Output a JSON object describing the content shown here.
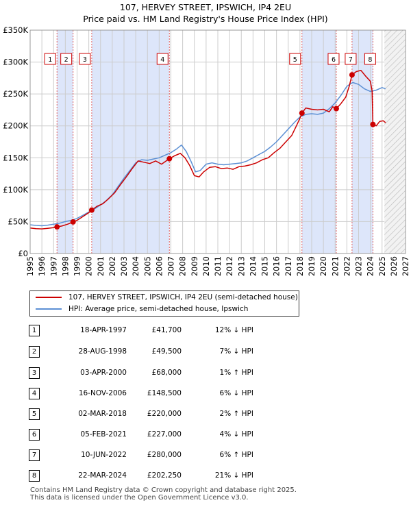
{
  "title": {
    "line1": "107, HERVEY STREET, IPSWICH, IP4 2EU",
    "line2": "Price paid vs. HM Land Registry's House Price Index (HPI)"
  },
  "legend": {
    "property": "107, HERVEY STREET, IPSWICH, IP4 2EU (semi-detached house)",
    "hpi": "HPI: Average price, semi-detached house, Ipswich"
  },
  "colors": {
    "property": "#cc0000",
    "hpi": "#5b8fd4",
    "band": "#dde6fa",
    "grid": "#cccccc",
    "marker_line": "#e06060"
  },
  "sales": [
    {
      "num": "1",
      "date": "18-APR-1997",
      "price": "£41,700",
      "hpi": "12% ↓ HPI"
    },
    {
      "num": "2",
      "date": "28-AUG-1998",
      "price": "£49,500",
      "hpi": "7% ↓ HPI"
    },
    {
      "num": "3",
      "date": "03-APR-2000",
      "price": "£68,000",
      "hpi": "1% ↑ HPI"
    },
    {
      "num": "4",
      "date": "16-NOV-2006",
      "price": "£148,500",
      "hpi": "6% ↓ HPI"
    },
    {
      "num": "5",
      "date": "02-MAR-2018",
      "price": "£220,000",
      "hpi": "2% ↑ HPI"
    },
    {
      "num": "6",
      "date": "05-FEB-2021",
      "price": "£227,000",
      "hpi": "4% ↓ HPI"
    },
    {
      "num": "7",
      "date": "10-JUN-2022",
      "price": "£280,000",
      "hpi": "6% ↑ HPI"
    },
    {
      "num": "8",
      "date": "22-MAR-2024",
      "price": "£202,250",
      "hpi": "21% ↓ HPI"
    }
  ],
  "footer": {
    "line1": "Contains HM Land Registry data © Crown copyright and database right 2025.",
    "line2": "This data is licensed under the Open Government Licence v3.0."
  },
  "chart_data": {
    "type": "line",
    "title": "Price paid vs. HM Land Registry's House Price Index (HPI)",
    "xlabel": "",
    "ylabel": "",
    "xlim": [
      1995,
      2027
    ],
    "ylim": [
      0,
      350000
    ],
    "x_ticks": [
      "1995",
      "1996",
      "1997",
      "1998",
      "1999",
      "2000",
      "2001",
      "2002",
      "2003",
      "2004",
      "2005",
      "2006",
      "2007",
      "2008",
      "2009",
      "2010",
      "2011",
      "2012",
      "2013",
      "2014",
      "2015",
      "2016",
      "2017",
      "2018",
      "2019",
      "2020",
      "2021",
      "2022",
      "2023",
      "2024",
      "2025",
      "2026",
      "2027"
    ],
    "y_ticks": [
      {
        "value": 0,
        "label": "£0"
      },
      {
        "value": 50000,
        "label": "£50K"
      },
      {
        "value": 100000,
        "label": "£100K"
      },
      {
        "value": 150000,
        "label": "£150K"
      },
      {
        "value": 200000,
        "label": "£200K"
      },
      {
        "value": 250000,
        "label": "£250K"
      },
      {
        "value": 300000,
        "label": "£300K"
      },
      {
        "value": 350000,
        "label": "£350K"
      }
    ],
    "grid": true,
    "shaded_ranges": [
      [
        1997.29,
        1998.66
      ],
      [
        2000.25,
        2006.87
      ],
      [
        2018.17,
        2021.1
      ],
      [
        2022.44,
        2024.22
      ]
    ],
    "hatched_range": [
      2025.2,
      2027
    ],
    "sale_markers": [
      {
        "label": "1",
        "x": 1997.29,
        "y": 41700
      },
      {
        "label": "2",
        "x": 1998.66,
        "y": 49500
      },
      {
        "label": "3",
        "x": 2000.25,
        "y": 68000
      },
      {
        "label": "4",
        "x": 2006.87,
        "y": 148500
      },
      {
        "label": "5",
        "x": 2018.17,
        "y": 220000
      },
      {
        "label": "6",
        "x": 2021.1,
        "y": 227000
      },
      {
        "label": "7",
        "x": 2022.44,
        "y": 280000
      },
      {
        "label": "8",
        "x": 2024.22,
        "y": 202250
      }
    ],
    "series": [
      {
        "name": "107, HERVEY STREET, IPSWICH, IP4 2EU (semi-detached house)",
        "color": "#cc0000",
        "points": [
          [
            1995.0,
            40000
          ],
          [
            1995.5,
            39000
          ],
          [
            1996.0,
            38500
          ],
          [
            1996.5,
            39500
          ],
          [
            1997.0,
            40500
          ],
          [
            1997.29,
            41700
          ],
          [
            1997.7,
            43000
          ],
          [
            1998.2,
            46000
          ],
          [
            1998.66,
            49500
          ],
          [
            1999.0,
            52000
          ],
          [
            1999.5,
            58000
          ],
          [
            2000.0,
            64000
          ],
          [
            2000.25,
            68000
          ],
          [
            2000.7,
            74000
          ],
          [
            2001.2,
            78000
          ],
          [
            2001.7,
            86000
          ],
          [
            2002.2,
            95000
          ],
          [
            2002.7,
            108000
          ],
          [
            2003.2,
            120000
          ],
          [
            2003.7,
            133000
          ],
          [
            2004.2,
            145000
          ],
          [
            2004.7,
            143000
          ],
          [
            2005.2,
            141000
          ],
          [
            2005.7,
            145000
          ],
          [
            2006.2,
            140000
          ],
          [
            2006.6,
            145000
          ],
          [
            2006.87,
            148500
          ],
          [
            2007.3,
            153000
          ],
          [
            2007.8,
            157000
          ],
          [
            2008.2,
            150000
          ],
          [
            2008.6,
            138000
          ],
          [
            2009.0,
            122000
          ],
          [
            2009.4,
            120000
          ],
          [
            2009.8,
            128000
          ],
          [
            2010.3,
            135000
          ],
          [
            2010.8,
            136000
          ],
          [
            2011.3,
            133000
          ],
          [
            2011.8,
            134000
          ],
          [
            2012.3,
            132000
          ],
          [
            2012.8,
            136000
          ],
          [
            2013.3,
            137000
          ],
          [
            2013.8,
            139000
          ],
          [
            2014.3,
            142000
          ],
          [
            2014.8,
            147000
          ],
          [
            2015.3,
            150000
          ],
          [
            2015.8,
            158000
          ],
          [
            2016.3,
            165000
          ],
          [
            2016.8,
            175000
          ],
          [
            2017.3,
            185000
          ],
          [
            2017.7,
            200000
          ],
          [
            2018.0,
            212000
          ],
          [
            2018.17,
            220000
          ],
          [
            2018.5,
            228000
          ],
          [
            2019.0,
            226000
          ],
          [
            2019.5,
            225000
          ],
          [
            2020.0,
            226000
          ],
          [
            2020.5,
            222000
          ],
          [
            2020.8,
            230000
          ],
          [
            2021.1,
            227000
          ],
          [
            2021.5,
            235000
          ],
          [
            2021.9,
            245000
          ],
          [
            2022.2,
            262000
          ],
          [
            2022.44,
            280000
          ],
          [
            2022.8,
            285000
          ],
          [
            2023.2,
            287000
          ],
          [
            2023.6,
            278000
          ],
          [
            2024.0,
            270000
          ],
          [
            2024.15,
            255000
          ],
          [
            2024.22,
            202250
          ],
          [
            2024.5,
            200000
          ],
          [
            2024.8,
            207000
          ],
          [
            2025.1,
            208000
          ],
          [
            2025.3,
            205000
          ]
        ]
      },
      {
        "name": "HPI: Average price, semi-detached house, Ipswich",
        "color": "#5b8fd4",
        "points": [
          [
            1995.0,
            45000
          ],
          [
            1995.5,
            44000
          ],
          [
            1996.0,
            43500
          ],
          [
            1996.5,
            44500
          ],
          [
            1997.0,
            46000
          ],
          [
            1997.5,
            47500
          ],
          [
            1998.0,
            50000
          ],
          [
            1998.5,
            52000
          ],
          [
            1999.0,
            55000
          ],
          [
            1999.5,
            60000
          ],
          [
            2000.0,
            65000
          ],
          [
            2000.5,
            70000
          ],
          [
            2001.0,
            76000
          ],
          [
            2001.5,
            83000
          ],
          [
            2002.0,
            92000
          ],
          [
            2002.5,
            105000
          ],
          [
            2003.0,
            118000
          ],
          [
            2003.5,
            130000
          ],
          [
            2004.0,
            142000
          ],
          [
            2004.5,
            147000
          ],
          [
            2005.0,
            146000
          ],
          [
            2005.5,
            148000
          ],
          [
            2006.0,
            150000
          ],
          [
            2006.5,
            154000
          ],
          [
            2007.0,
            158000
          ],
          [
            2007.5,
            164000
          ],
          [
            2007.9,
            170000
          ],
          [
            2008.3,
            160000
          ],
          [
            2008.7,
            145000
          ],
          [
            2009.1,
            128000
          ],
          [
            2009.5,
            130000
          ],
          [
            2010.0,
            140000
          ],
          [
            2010.5,
            142000
          ],
          [
            2011.0,
            140000
          ],
          [
            2011.5,
            139000
          ],
          [
            2012.0,
            140000
          ],
          [
            2012.5,
            141000
          ],
          [
            2013.0,
            142000
          ],
          [
            2013.5,
            145000
          ],
          [
            2014.0,
            150000
          ],
          [
            2014.5,
            155000
          ],
          [
            2015.0,
            160000
          ],
          [
            2015.5,
            167000
          ],
          [
            2016.0,
            175000
          ],
          [
            2016.5,
            185000
          ],
          [
            2017.0,
            195000
          ],
          [
            2017.5,
            205000
          ],
          [
            2018.0,
            214000
          ],
          [
            2018.5,
            218000
          ],
          [
            2019.0,
            219000
          ],
          [
            2019.5,
            218000
          ],
          [
            2020.0,
            220000
          ],
          [
            2020.5,
            227000
          ],
          [
            2021.0,
            236000
          ],
          [
            2021.5,
            248000
          ],
          [
            2022.0,
            262000
          ],
          [
            2022.5,
            268000
          ],
          [
            2023.0,
            265000
          ],
          [
            2023.5,
            258000
          ],
          [
            2024.0,
            254000
          ],
          [
            2024.5,
            256000
          ],
          [
            2025.0,
            260000
          ],
          [
            2025.3,
            258000
          ]
        ]
      }
    ]
  }
}
